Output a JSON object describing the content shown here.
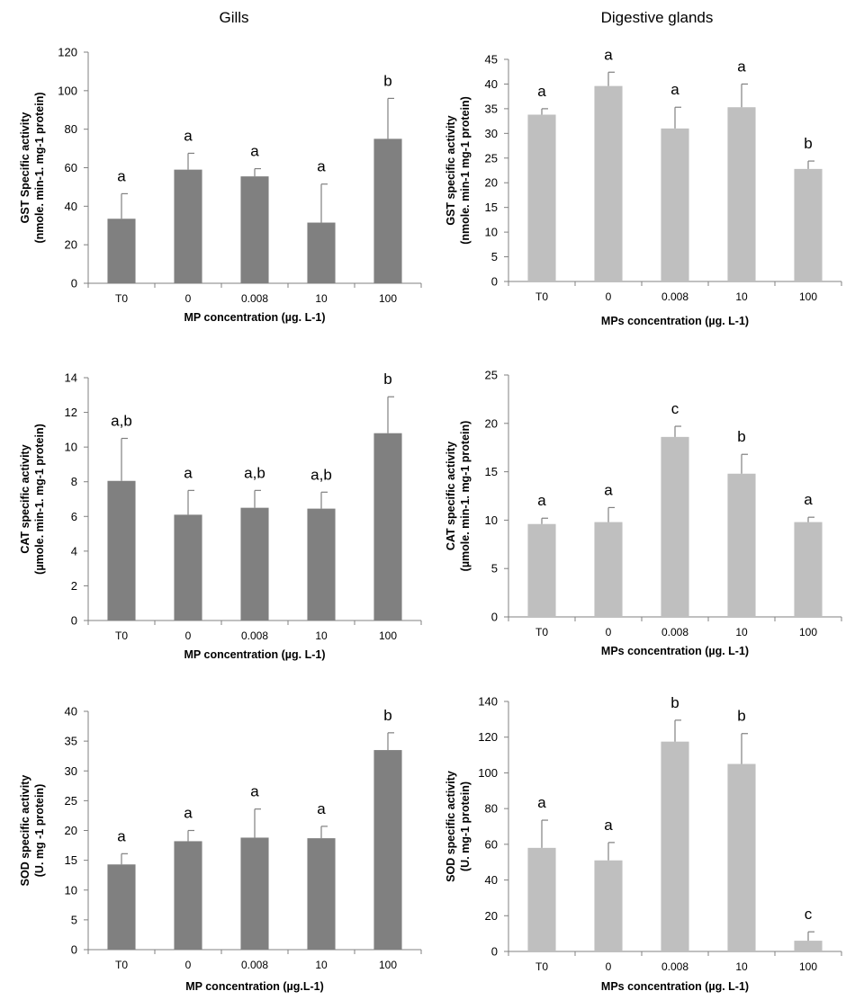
{
  "column_titles": [
    "Gills",
    "Digestive glands"
  ],
  "colors": {
    "gills_bar": "#808080",
    "digestive_bar": "#bfbfbf",
    "axis": "#808080"
  },
  "chart_data": [
    {
      "type": "bar",
      "panel": "gills-gst",
      "categories": [
        "T0",
        "0",
        "0.008",
        "10",
        "100"
      ],
      "values": [
        33.5,
        59,
        55.5,
        31.5,
        75
      ],
      "errors": [
        13,
        8.5,
        4,
        20,
        21
      ],
      "letters": [
        "a",
        "a",
        "a",
        "a",
        "b"
      ],
      "ylim": [
        0,
        120
      ],
      "yticks": [
        "0",
        "20",
        "40",
        "60",
        "80",
        "100",
        "120"
      ],
      "ylabel": [
        "GST Specific activity",
        "(nmole. min-1. mg-1 protein)"
      ],
      "xlabel": "MP concentration (µg. L-1)",
      "color": "#808080"
    },
    {
      "type": "bar",
      "panel": "digestive-gst",
      "categories": [
        "T0",
        "0",
        "0.008",
        "10",
        "100"
      ],
      "values": [
        33.8,
        39.6,
        31,
        35.3,
        22.8
      ],
      "errors": [
        1.2,
        2.8,
        4.3,
        4.7,
        1.6
      ],
      "letters": [
        "a",
        "a",
        "a",
        "a",
        "b"
      ],
      "ylim": [
        0,
        45
      ],
      "yticks": [
        "0",
        "5",
        "10",
        "15",
        "20",
        "25",
        "30",
        "35",
        "40",
        "45"
      ],
      "ylabel": [
        "GST specific activity",
        "(nmole. min-1 mg-1 protein)"
      ],
      "xlabel": "MPs concentration (µg. L-1)",
      "color": "#bfbfbf"
    },
    {
      "type": "bar",
      "panel": "gills-cat",
      "categories": [
        "T0",
        "0",
        "0.008",
        "10",
        "100"
      ],
      "values": [
        8.05,
        6.1,
        6.5,
        6.45,
        10.8
      ],
      "errors": [
        2.45,
        1.4,
        1.0,
        0.95,
        2.1
      ],
      "letters": [
        "a,b",
        "a",
        "a,b",
        "a,b",
        "b"
      ],
      "ylim": [
        0,
        14
      ],
      "yticks": [
        "0",
        "2",
        "4",
        "6",
        "8",
        "10",
        "12",
        "14"
      ],
      "ylabel": [
        "CAT specific activity",
        "(µmole. min-1. mg-1 protein)"
      ],
      "xlabel": "MP concentration (µg. L-1)",
      "color": "#808080"
    },
    {
      "type": "bar",
      "panel": "digestive-cat",
      "categories": [
        "T0",
        "0",
        "0.008",
        "10",
        "100"
      ],
      "values": [
        9.6,
        9.8,
        18.6,
        14.8,
        9.8
      ],
      "errors": [
        0.6,
        1.5,
        1.1,
        2.0,
        0.5
      ],
      "letters": [
        "a",
        "a",
        "c",
        "b",
        "a"
      ],
      "ylim": [
        0,
        25
      ],
      "yticks": [
        "0",
        "5",
        "10",
        "15",
        "20",
        "25"
      ],
      "ylabel": [
        "CAT specific activity",
        "(µmole. min-1. mg-1 protein)"
      ],
      "xlabel": "MPs concentration (µg. L-1)",
      "color": "#bfbfbf"
    },
    {
      "type": "bar",
      "panel": "gills-sod",
      "categories": [
        "T0",
        "0",
        "0.008",
        "10",
        "100"
      ],
      "values": [
        14.3,
        18.2,
        18.8,
        18.7,
        33.5
      ],
      "errors": [
        1.8,
        1.8,
        4.8,
        2.0,
        2.9
      ],
      "letters": [
        "a",
        "a",
        "a",
        "a",
        "b"
      ],
      "ylim": [
        0,
        40
      ],
      "yticks": [
        "0",
        "5",
        "10",
        "15",
        "20",
        "25",
        "30",
        "35",
        "40"
      ],
      "ylabel": [
        "SOD specific activity",
        "(U. mg -1 protein)"
      ],
      "xlabel": "MP concentration (µg.L-1)",
      "color": "#808080"
    },
    {
      "type": "bar",
      "panel": "digestive-sod",
      "categories": [
        "T0",
        "0",
        "0.008",
        "10",
        "100"
      ],
      "values": [
        58,
        51,
        117.5,
        105,
        6
      ],
      "errors": [
        15.5,
        10,
        12,
        17,
        5
      ],
      "letters": [
        "a",
        "a",
        "b",
        "b",
        "c"
      ],
      "ylim": [
        0,
        140
      ],
      "yticks": [
        "0",
        "20",
        "40",
        "60",
        "80",
        "100",
        "120",
        "140"
      ],
      "ylabel": [
        "SOD specific activity",
        "(U. mg-1 protein)"
      ],
      "xlabel": "MPs concentration (µg. L-1)",
      "color": "#bfbfbf"
    }
  ]
}
